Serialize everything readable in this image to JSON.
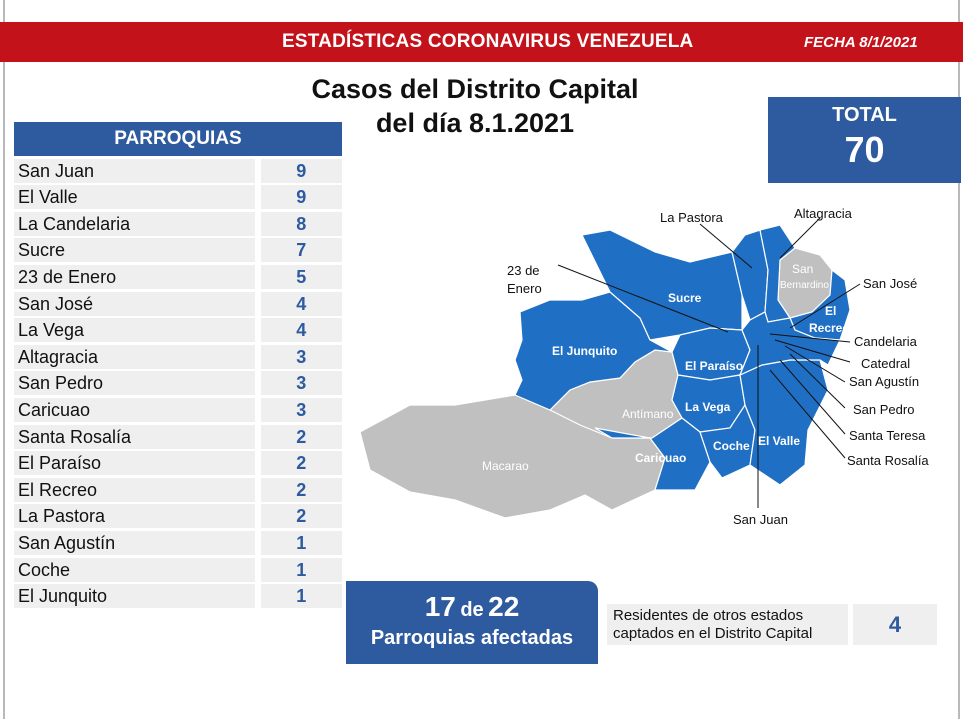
{
  "header": {
    "title": "ESTADÍSTICAS CORONAVIRUS VENEZUELA",
    "date": "FECHA 8/1/2021"
  },
  "main_title": {
    "line1": "Casos del Distrito Capital",
    "line2": "del día 8.1.2021"
  },
  "total": {
    "label": "TOTAL",
    "value": "70"
  },
  "parishes": {
    "header": "PARROQUIAS",
    "rows": [
      {
        "name": "San Juan",
        "count": "9"
      },
      {
        "name": "El Valle",
        "count": "9"
      },
      {
        "name": "La Candelaria",
        "count": "8"
      },
      {
        "name": "Sucre",
        "count": "7"
      },
      {
        "name": "23 de Enero",
        "count": "5"
      },
      {
        "name": "San José",
        "count": "4"
      },
      {
        "name": "La Vega",
        "count": "4"
      },
      {
        "name": "Altagracia",
        "count": "3"
      },
      {
        "name": "San Pedro",
        "count": "3"
      },
      {
        "name": "Caricuao",
        "count": "3"
      },
      {
        "name": "Santa Rosalía",
        "count": "2"
      },
      {
        "name": "El Paraíso",
        "count": "2"
      },
      {
        "name": "El Recreo",
        "count": "2"
      },
      {
        "name": "La Pastora",
        "count": "2"
      },
      {
        "name": "San Agustín",
        "count": "1"
      },
      {
        "name": "Coche",
        "count": "1"
      },
      {
        "name": "El Junquito",
        "count": "1"
      }
    ]
  },
  "affected": {
    "count": "17",
    "connector": "de",
    "total": "22",
    "label": "Parroquias afectadas"
  },
  "residents": {
    "label_line1": "Residentes de otros estados",
    "label_line2": "captados en el Distrito Capital",
    "value": "4"
  },
  "map": {
    "colors": {
      "affected": "#1f6fc4",
      "not_affected": "#c0c0c0",
      "border": "#ffffff"
    },
    "inner_labels": {
      "sucre": "Sucre",
      "el_junquito": "El Junquito",
      "el_paraiso": "El Paraíso",
      "la_vega": "La Vega",
      "antimano": "Antímano",
      "macarao": "Macarao",
      "caricuao": "Caricuao",
      "coche": "Coche",
      "el_valle": "El Valle",
      "san_bernardino_1": "San",
      "san_bernardino_2": "Bernardino",
      "el_recreo_1": "El",
      "el_recreo_2": "Recreo"
    },
    "callouts": {
      "la_pastora": "La Pastora",
      "altagracia": "Altagracia",
      "enero_1": "23 de",
      "enero_2": "Enero",
      "san_jose": "San José",
      "candelaria": "Candelaria",
      "catedral": "Catedral",
      "san_agustin": "San Agustín",
      "san_pedro": "San Pedro",
      "santa_teresa": "Santa Teresa",
      "santa_rosalia": "Santa Rosalía",
      "san_juan": "San Juan"
    }
  }
}
